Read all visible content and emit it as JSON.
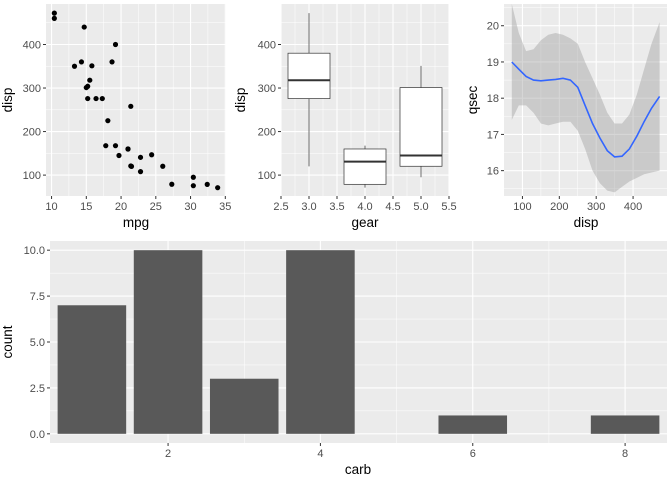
{
  "chart_data": [
    {
      "type": "scatter",
      "xlabel": "mpg",
      "ylabel": "disp",
      "xlim": [
        9.2,
        35.1
      ],
      "ylim": [
        52,
        493
      ],
      "x_ticks": [
        10,
        15,
        20,
        25,
        30,
        35
      ],
      "y_ticks": [
        100,
        200,
        300,
        400
      ],
      "points": [
        [
          21.0,
          160
        ],
        [
          21.0,
          160
        ],
        [
          22.8,
          108
        ],
        [
          21.4,
          258
        ],
        [
          18.7,
          360
        ],
        [
          18.1,
          225
        ],
        [
          14.3,
          360
        ],
        [
          24.4,
          146.7
        ],
        [
          22.8,
          140.8
        ],
        [
          19.2,
          167.6
        ],
        [
          17.8,
          167.6
        ],
        [
          16.4,
          275.8
        ],
        [
          17.3,
          275.8
        ],
        [
          15.2,
          275.8
        ],
        [
          10.4,
          472
        ],
        [
          10.4,
          460
        ],
        [
          14.7,
          440
        ],
        [
          32.4,
          78.7
        ],
        [
          30.4,
          75.7
        ],
        [
          33.9,
          71.1
        ],
        [
          21.5,
          120.1
        ],
        [
          15.5,
          318
        ],
        [
          15.2,
          304
        ],
        [
          13.3,
          350
        ],
        [
          19.2,
          400
        ],
        [
          27.3,
          79
        ],
        [
          26.0,
          120.3
        ],
        [
          30.4,
          95.1
        ],
        [
          15.8,
          351
        ],
        [
          19.7,
          145
        ],
        [
          15.0,
          301
        ],
        [
          21.4,
          121
        ]
      ]
    },
    {
      "type": "box",
      "xlabel": "gear",
      "ylabel": "disp",
      "xlim": [
        2.5,
        5.5
      ],
      "ylim": [
        52,
        493
      ],
      "x_ticks": [
        2.5,
        3.0,
        3.5,
        4.0,
        4.5,
        5.0,
        5.5
      ],
      "y_ticks": [
        100,
        200,
        300,
        400
      ],
      "boxes": [
        {
          "x": 3,
          "min": 120.1,
          "q1": 275.8,
          "median": 318,
          "q3": 380,
          "max": 472
        },
        {
          "x": 4,
          "min": 71.1,
          "q1": 78.8,
          "median": 130.9,
          "q3": 160,
          "max": 167.6
        },
        {
          "x": 5,
          "min": 95.1,
          "q1": 120.3,
          "median": 145,
          "q3": 301,
          "max": 351
        }
      ]
    },
    {
      "type": "line",
      "smooth": true,
      "xlabel": "disp",
      "ylabel": "qsec",
      "xlim": [
        50,
        492
      ],
      "ylim": [
        15.3,
        20.6
      ],
      "x_ticks": [
        100,
        200,
        300,
        400
      ],
      "y_ticks": [
        16,
        17,
        18,
        19,
        20
      ],
      "line_color": "#3366FF",
      "band_color": "#999999",
      "x": [
        71.1,
        90,
        110,
        130,
        150,
        170,
        190,
        210,
        230,
        250,
        270,
        290,
        310,
        330,
        350,
        370,
        390,
        410,
        430,
        450,
        472
      ],
      "y": [
        19.0,
        18.8,
        18.6,
        18.5,
        18.48,
        18.5,
        18.52,
        18.55,
        18.5,
        18.3,
        17.8,
        17.3,
        16.9,
        16.55,
        16.38,
        16.4,
        16.6,
        16.95,
        17.35,
        17.72,
        18.05
      ],
      "lower": [
        17.4,
        17.8,
        17.8,
        17.6,
        17.3,
        17.25,
        17.3,
        17.35,
        17.35,
        17.1,
        16.6,
        16.0,
        15.65,
        15.45,
        15.4,
        15.55,
        15.7,
        15.8,
        15.9,
        15.95,
        16.0
      ],
      "upper": [
        20.6,
        19.8,
        19.3,
        19.35,
        19.6,
        19.75,
        19.8,
        19.75,
        19.65,
        19.5,
        19.0,
        18.55,
        18.1,
        17.6,
        17.3,
        17.3,
        17.55,
        18.1,
        18.8,
        19.5,
        20.1
      ]
    },
    {
      "type": "bar",
      "xlabel": "carb",
      "ylabel": "count",
      "xlim": [
        0.45,
        8.55
      ],
      "ylim": [
        -0.5,
        10.5
      ],
      "x_ticks": [
        2,
        4,
        6,
        8
      ],
      "y_ticks": [
        0.0,
        2.5,
        5.0,
        7.5,
        10.0
      ],
      "y_tick_labels": [
        "0.0",
        "2.5",
        "5.0",
        "7.5",
        "10.0"
      ],
      "bar_color": "#595959",
      "categories": [
        1,
        2,
        3,
        4,
        6,
        8
      ],
      "values": [
        7,
        10,
        3,
        10,
        1,
        1
      ]
    }
  ]
}
